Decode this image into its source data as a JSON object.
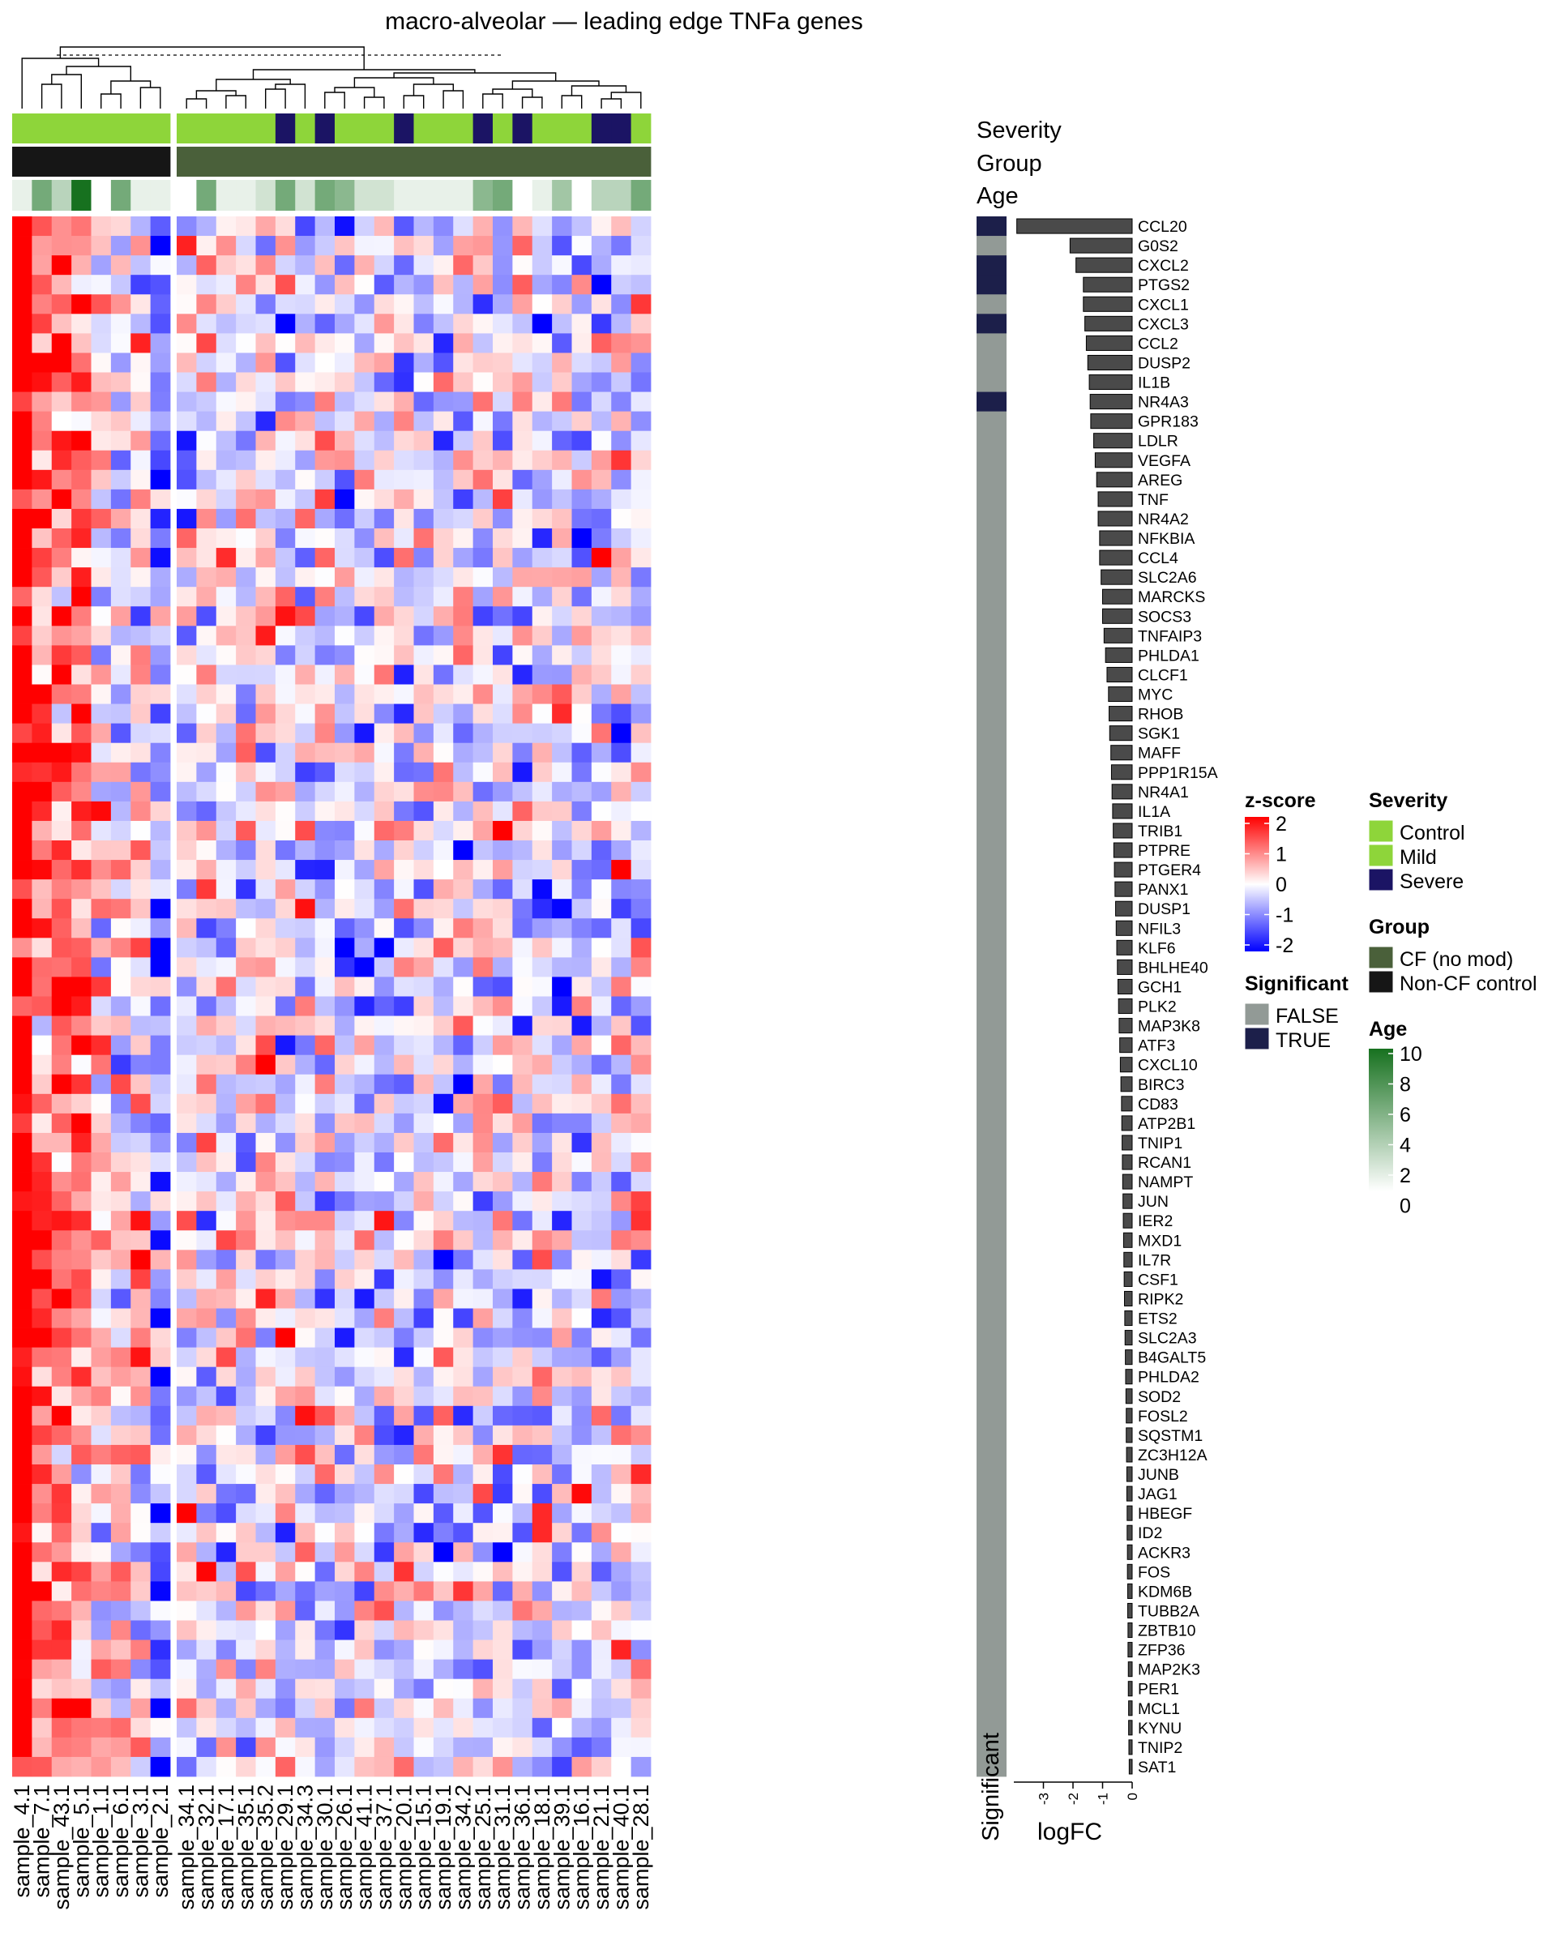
{
  "chart_data": {
    "type": "heatmap",
    "title": "macro-alveolar — leading edge TNFa genes",
    "samples": [
      "sample_4.1",
      "sample_7.1",
      "sample_43.1",
      "sample_5.1",
      "sample_1.1",
      "sample_6.1",
      "sample_3.1",
      "sample_2.1",
      "sample_34.1",
      "sample_32.1",
      "sample_17.1",
      "sample_35.1",
      "sample_35.2",
      "sample_29.1",
      "sample_34.3",
      "sample_30.1",
      "sample_26.1",
      "sample_41.1",
      "sample_37.1",
      "sample_20.1",
      "sample_15.1",
      "sample_19.1",
      "sample_34.2",
      "sample_25.1",
      "sample_31.1",
      "sample_36.1",
      "sample_18.1",
      "sample_39.1",
      "sample_16.1",
      "sample_21.1",
      "sample_40.1",
      "sample_28.1"
    ],
    "column_split_after_index": 7,
    "annotations": {
      "severity_label": "Severity",
      "group_label": "Group",
      "age_label": "Age",
      "significant_label": "Significant",
      "severity": [
        "Control",
        "Control",
        "Control",
        "Control",
        "Control",
        "Control",
        "Control",
        "Control",
        "Mild",
        "Mild",
        "Mild",
        "Mild",
        "Mild",
        "Severe",
        "Mild",
        "Severe",
        "Mild",
        "Mild",
        "Mild",
        "Severe",
        "Mild",
        "Mild",
        "Mild",
        "Severe",
        "Mild",
        "Severe",
        "Mild",
        "Mild",
        "Mild",
        "Severe",
        "Severe",
        "Mild"
      ],
      "group": [
        "Non-CF control",
        "Non-CF control",
        "Non-CF control",
        "Non-CF control",
        "Non-CF control",
        "Non-CF control",
        "Non-CF control",
        "Non-CF control",
        "CF (no mod)",
        "CF (no mod)",
        "CF (no mod)",
        "CF (no mod)",
        "CF (no mod)",
        "CF (no mod)",
        "CF (no mod)",
        "CF (no mod)",
        "CF (no mod)",
        "CF (no mod)",
        "CF (no mod)",
        "CF (no mod)",
        "CF (no mod)",
        "CF (no mod)",
        "CF (no mod)",
        "CF (no mod)",
        "CF (no mod)",
        "CF (no mod)",
        "CF (no mod)",
        "CF (no mod)",
        "CF (no mod)",
        "CF (no mod)",
        "CF (no mod)",
        "CF (no mod)"
      ],
      "age": [
        1,
        6,
        3,
        10,
        0,
        6,
        1,
        1,
        0,
        6,
        1,
        1,
        2,
        6,
        2,
        6,
        5,
        2,
        2,
        1,
        1,
        1,
        1,
        5,
        6,
        0,
        1,
        4,
        0,
        3,
        3,
        6
      ]
    },
    "genes": [
      "CCL20",
      "G0S2",
      "CXCL2",
      "PTGS2",
      "CXCL1",
      "CXCL3",
      "CCL2",
      "DUSP2",
      "IL1B",
      "NR4A3",
      "GPR183",
      "LDLR",
      "VEGFA",
      "AREG",
      "TNF",
      "NR4A2",
      "NFKBIA",
      "CCL4",
      "SLC2A6",
      "MARCKS",
      "SOCS3",
      "TNFAIP3",
      "PHLDA1",
      "CLCF1",
      "MYC",
      "RHOB",
      "SGK1",
      "MAFF",
      "PPP1R15A",
      "NR4A1",
      "IL1A",
      "TRIB1",
      "PTPRE",
      "PTGER4",
      "PANX1",
      "DUSP1",
      "NFIL3",
      "KLF6",
      "BHLHE40",
      "GCH1",
      "PLK2",
      "MAP3K8",
      "ATF3",
      "CXCL10",
      "BIRC3",
      "CD83",
      "ATP2B1",
      "TNIP1",
      "RCAN1",
      "NAMPT",
      "JUN",
      "IER2",
      "MXD1",
      "IL7R",
      "CSF1",
      "RIPK2",
      "ETS2",
      "SLC2A3",
      "B4GALT5",
      "PHLDA2",
      "SOD2",
      "FOSL2",
      "SQSTM1",
      "ZC3H12A",
      "JUNB",
      "JAG1",
      "HBEGF",
      "ID2",
      "ACKR3",
      "FOS",
      "KDM6B",
      "TUBB2A",
      "ZBTB10",
      "ZFP36",
      "MAP2K3",
      "PER1",
      "MCL1",
      "KYNU",
      "TNIP2",
      "SAT1"
    ],
    "significant": [
      true,
      false,
      true,
      true,
      false,
      true,
      false,
      false,
      false,
      true,
      false,
      false,
      false,
      false,
      false,
      false,
      false,
      false,
      false,
      false,
      false,
      false,
      false,
      false,
      false,
      false,
      false,
      false,
      false,
      false,
      false,
      false,
      false,
      false,
      false,
      false,
      false,
      false,
      false,
      false,
      false,
      false,
      false,
      false,
      false,
      false,
      false,
      false,
      false,
      false,
      false,
      false,
      false,
      false,
      false,
      false,
      false,
      false,
      false,
      false,
      false,
      false,
      false,
      false,
      false,
      false,
      false,
      false,
      false,
      false,
      false,
      false,
      false,
      false,
      false,
      false,
      false,
      false,
      false,
      false
    ],
    "logFC": [
      -3.9,
      -2.1,
      -1.9,
      -1.65,
      -1.65,
      -1.6,
      -1.55,
      -1.5,
      -1.45,
      -1.42,
      -1.4,
      -1.3,
      -1.25,
      -1.2,
      -1.15,
      -1.15,
      -1.1,
      -1.1,
      -1.05,
      -1.0,
      -1.0,
      -0.95,
      -0.9,
      -0.85,
      -0.8,
      -0.78,
      -0.76,
      -0.72,
      -0.7,
      -0.68,
      -0.66,
      -0.64,
      -0.62,
      -0.6,
      -0.58,
      -0.56,
      -0.54,
      -0.52,
      -0.5,
      -0.48,
      -0.46,
      -0.44,
      -0.42,
      -0.4,
      -0.38,
      -0.36,
      -0.35,
      -0.34,
      -0.33,
      -0.32,
      -0.31,
      -0.3,
      -0.29,
      -0.28,
      -0.27,
      -0.26,
      -0.25,
      -0.24,
      -0.23,
      -0.22,
      -0.21,
      -0.2,
      -0.2,
      -0.19,
      -0.18,
      -0.18,
      -0.17,
      -0.17,
      -0.16,
      -0.16,
      -0.15,
      -0.15,
      -0.14,
      -0.14,
      -0.13,
      -0.13,
      -0.12,
      -0.12,
      -0.11,
      -0.1
    ],
    "logFC_axis_label": "logFC",
    "logFC_ticks": [
      "-3",
      "-2",
      "-1",
      "0"
    ],
    "logFC_range": [
      -4,
      0
    ],
    "color_scale": {
      "name": "z-score",
      "range": [
        -2,
        2
      ],
      "ticks": [
        "2",
        "1",
        "0",
        "-1",
        "-2"
      ],
      "low": "#0000ff",
      "mid": "#ffffff",
      "high": "#ff0000"
    },
    "severity_colors": {
      "Control": "#8ed53a",
      "Mild": "#8ed53a",
      "Severe": "#1b1464"
    },
    "group_colors": {
      "CF (no mod)": "#4a603a",
      "Non-CF control": "#161616"
    },
    "significant_colors": {
      "FALSE": "#929a96",
      "TRUE": "#1c1f4a"
    },
    "age_scale": {
      "range": [
        0,
        10
      ],
      "ticks": [
        "10",
        "8",
        "6",
        "4",
        "2",
        "0"
      ],
      "low": "#ffffff",
      "high": "#17711f"
    },
    "legends": {
      "zscore_title": "z-score",
      "significant_title": "Significant",
      "significant_levels": [
        "FALSE",
        "TRUE"
      ],
      "severity_title": "Severity",
      "severity_levels": [
        "Control",
        "Mild",
        "Severe"
      ],
      "group_title": "Group",
      "group_levels": [
        "CF (no mod)",
        "Non-CF control"
      ],
      "age_title": "Age"
    }
  }
}
